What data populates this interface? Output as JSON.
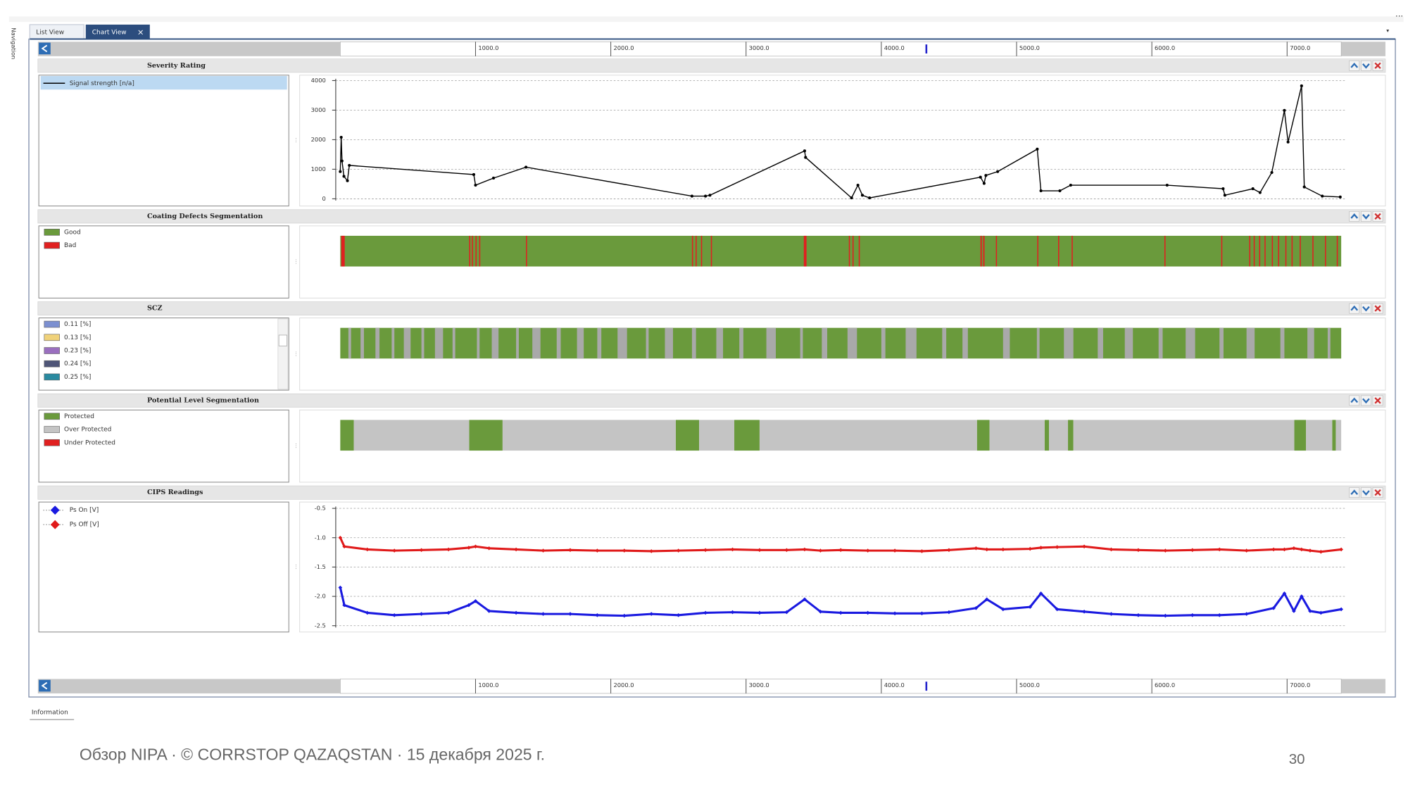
{
  "tabs": [
    "List View",
    "Chart View"
  ],
  "sidebar": "Navigation",
  "ruler": {
    "xlim": [
      0,
      7400
    ],
    "xticks": [
      {
        "value": 1000,
        "label": "1000.0"
      },
      {
        "value": 2000,
        "label": "2000.0"
      },
      {
        "value": 3000,
        "label": "3000.0"
      },
      {
        "value": 4000,
        "label": "4000.0"
      },
      {
        "value": 5000,
        "label": "5000.0"
      },
      {
        "value": 6000,
        "label": "6000.0"
      },
      {
        "value": 7000,
        "label": "7000.0"
      }
    ],
    "cursor": 4333
  },
  "chart_data": [
    {
      "type": "line",
      "title": "Severity Rating",
      "xlim": [
        0,
        7400
      ],
      "ylim": [
        0,
        4000
      ],
      "yticks": [
        0,
        1000,
        2000,
        3000,
        4000
      ],
      "grid": true,
      "series": [
        {
          "name": "Signal strength [n/a]",
          "color": "#000000",
          "x": [
            0,
            7,
            13,
            27,
            53,
            67,
            987,
            1000,
            1133,
            1373,
            2600,
            2700,
            2733,
            3433,
            3440,
            3780,
            3827,
            3860,
            3913,
            4733,
            4760,
            4773,
            4860,
            5153,
            5180,
            5320,
            5400,
            6113,
            6527,
            6540,
            6747,
            6800,
            6887,
            6980,
            7007,
            7107,
            7127,
            7260,
            7393
          ],
          "values": [
            920,
            2080,
            1280,
            760,
            610,
            1130,
            820,
            460,
            700,
            1070,
            90,
            90,
            120,
            1620,
            1400,
            30,
            460,
            120,
            30,
            730,
            520,
            790,
            920,
            1680,
            270,
            270,
            460,
            460,
            340,
            120,
            340,
            210,
            890,
            2990,
            1920,
            3820,
            400,
            90,
            60
          ]
        }
      ]
    },
    {
      "type": "segments",
      "title": "Coating Defects Segmentation",
      "xlim": [
        0,
        7400
      ],
      "series": [
        {
          "name": "Good",
          "color": "#6a9a3c",
          "intervals": [
            [
              0,
              7400
            ]
          ]
        },
        {
          "name": "Bad",
          "color": "#e02020",
          "intervals": [
            [
              7,
              33
            ],
            [
              953,
              961
            ],
            [
              973,
              981
            ],
            [
              1000,
              1008
            ],
            [
              1027,
              1035
            ],
            [
              1373,
              1381
            ],
            [
              2600,
              2608
            ],
            [
              2627,
              2635
            ],
            [
              2667,
              2675
            ],
            [
              2740,
              2748
            ],
            [
              3427,
              3447
            ],
            [
              3760,
              3768
            ],
            [
              3787,
              3795
            ],
            [
              3833,
              3841
            ],
            [
              4733,
              4743
            ],
            [
              4753,
              4763
            ],
            [
              4847,
              4855
            ],
            [
              5153,
              5161
            ],
            [
              5307,
              5315
            ],
            [
              5407,
              5415
            ],
            [
              6093,
              6101
            ],
            [
              6513,
              6521
            ],
            [
              6720,
              6728
            ],
            [
              6753,
              6761
            ],
            [
              6793,
              6801
            ],
            [
              6833,
              6841
            ],
            [
              6887,
              6895
            ],
            [
              6933,
              6941
            ],
            [
              6987,
              6995
            ],
            [
              7033,
              7041
            ],
            [
              7093,
              7101
            ],
            [
              7187,
              7195
            ],
            [
              7280,
              7288
            ],
            [
              7367,
              7375
            ]
          ]
        }
      ]
    },
    {
      "type": "stripes",
      "title": "SCZ",
      "xlim": [
        0,
        7400
      ],
      "series": [
        {
          "name": "0.11 [%]",
          "color": "#7b8fd0"
        },
        {
          "name": "0.13 [%]",
          "color": "#f0d27a"
        },
        {
          "name": "0.23 [%]",
          "color": "#9a6fbf"
        },
        {
          "name": "0.24 [%]",
          "color": "#4f5577"
        },
        {
          "name": "0.25 [%]",
          "color": "#2a8aa0"
        }
      ],
      "bar": {
        "color": "#6a9a3c",
        "stripe_color": "#a9a9a9",
        "stripes": [
          [
            60,
            80
          ],
          [
            150,
            175
          ],
          [
            260,
            290
          ],
          [
            380,
            400
          ],
          [
            470,
            520
          ],
          [
            600,
            620
          ],
          [
            700,
            760
          ],
          [
            830,
            850
          ],
          [
            1010,
            1030
          ],
          [
            1120,
            1170
          ],
          [
            1300,
            1320
          ],
          [
            1420,
            1480
          ],
          [
            1600,
            1630
          ],
          [
            1750,
            1800
          ],
          [
            1900,
            1930
          ],
          [
            2050,
            2120
          ],
          [
            2260,
            2280
          ],
          [
            2400,
            2460
          ],
          [
            2600,
            2630
          ],
          [
            2780,
            2830
          ],
          [
            2950,
            2980
          ],
          [
            3150,
            3220
          ],
          [
            3400,
            3420
          ],
          [
            3560,
            3600
          ],
          [
            3750,
            3820
          ],
          [
            4000,
            4030
          ],
          [
            4180,
            4260
          ],
          [
            4450,
            4480
          ],
          [
            4600,
            4640
          ],
          [
            4900,
            4950
          ],
          [
            5150,
            5170
          ],
          [
            5350,
            5420
          ],
          [
            5600,
            5640
          ],
          [
            5800,
            5860
          ],
          [
            6050,
            6080
          ],
          [
            6250,
            6320
          ],
          [
            6500,
            6530
          ],
          [
            6700,
            6760
          ],
          [
            6950,
            6980
          ],
          [
            7150,
            7200
          ],
          [
            7300,
            7320
          ]
        ]
      }
    },
    {
      "type": "segments",
      "title": "Potential Level Segmentation",
      "xlim": [
        0,
        7400
      ],
      "series": [
        {
          "name": "Protected",
          "color": "#6a9a3c",
          "intervals": [
            [
              0,
              100
            ],
            [
              953,
              1200
            ],
            [
              2480,
              2653
            ],
            [
              2913,
              3100
            ],
            [
              4707,
              4800
            ],
            [
              5207,
              5240
            ],
            [
              5380,
              5420
            ],
            [
              7053,
              7140
            ],
            [
              7333,
              7360
            ]
          ]
        },
        {
          "name": "Over Protected",
          "color": "#c4c4c4",
          "intervals": [
            [
              100,
              953
            ],
            [
              1200,
              2480
            ],
            [
              2653,
              2913
            ],
            [
              3100,
              4707
            ],
            [
              4800,
              5207
            ],
            [
              5240,
              5380
            ],
            [
              5420,
              7053
            ],
            [
              7140,
              7333
            ],
            [
              7360,
              7400
            ]
          ]
        },
        {
          "name": "Under Protected",
          "color": "#e02020",
          "intervals": []
        }
      ]
    },
    {
      "type": "scatter",
      "title": "CIPS Readings",
      "xlim": [
        0,
        7400
      ],
      "ylim": [
        -2.5,
        -0.5
      ],
      "yticks": [
        -0.5,
        {
          "value": -1,
          "label": "-1.0"
        },
        -1.5,
        {
          "value": -2,
          "label": "-2.0"
        },
        -2.5
      ],
      "grid": true,
      "series": [
        {
          "name": "Ps On [V]",
          "color": "#1a1ae0",
          "x": [
            0,
            30,
            200,
            400,
            600,
            800,
            950,
            1000,
            1100,
            1300,
            1500,
            1700,
            1900,
            2100,
            2300,
            2500,
            2700,
            2900,
            3100,
            3300,
            3433,
            3550,
            3700,
            3900,
            4100,
            4300,
            4500,
            4700,
            4780,
            4900,
            5100,
            5180,
            5300,
            5500,
            5700,
            5900,
            6100,
            6300,
            6500,
            6700,
            6900,
            6980,
            7050,
            7107,
            7170,
            7250,
            7400
          ],
          "values": [
            -1.85,
            -2.15,
            -2.28,
            -2.32,
            -2.3,
            -2.28,
            -2.15,
            -2.08,
            -2.25,
            -2.28,
            -2.3,
            -2.3,
            -2.32,
            -2.33,
            -2.3,
            -2.32,
            -2.28,
            -2.27,
            -2.28,
            -2.27,
            -2.05,
            -2.26,
            -2.28,
            -2.28,
            -2.29,
            -2.29,
            -2.27,
            -2.2,
            -2.05,
            -2.22,
            -2.18,
            -1.95,
            -2.22,
            -2.26,
            -2.3,
            -2.32,
            -2.33,
            -2.32,
            -2.32,
            -2.3,
            -2.2,
            -1.95,
            -2.25,
            -2.0,
            -2.25,
            -2.28,
            -2.22
          ]
        },
        {
          "name": "Ps Off [V]",
          "color": "#e01a1a",
          "x": [
            0,
            30,
            200,
            400,
            600,
            800,
            950,
            1000,
            1100,
            1300,
            1500,
            1700,
            1900,
            2100,
            2300,
            2500,
            2700,
            2900,
            3100,
            3300,
            3433,
            3550,
            3700,
            3900,
            4100,
            4300,
            4500,
            4700,
            4780,
            4900,
            5100,
            5180,
            5300,
            5500,
            5700,
            5900,
            6100,
            6300,
            6500,
            6700,
            6900,
            6980,
            7050,
            7107,
            7170,
            7250,
            7400
          ],
          "values": [
            -1.0,
            -1.15,
            -1.2,
            -1.22,
            -1.21,
            -1.2,
            -1.17,
            -1.15,
            -1.18,
            -1.2,
            -1.22,
            -1.21,
            -1.22,
            -1.22,
            -1.23,
            -1.22,
            -1.21,
            -1.2,
            -1.21,
            -1.21,
            -1.2,
            -1.22,
            -1.21,
            -1.22,
            -1.22,
            -1.23,
            -1.21,
            -1.18,
            -1.2,
            -1.2,
            -1.19,
            -1.17,
            -1.16,
            -1.15,
            -1.2,
            -1.21,
            -1.22,
            -1.21,
            -1.2,
            -1.22,
            -1.2,
            -1.2,
            -1.18,
            -1.2,
            -1.22,
            -1.24,
            -1.2
          ]
        }
      ]
    }
  ],
  "status": "Information",
  "footer": "Обзор NIPA · © CORRSTOP QAZAQSTAN · 15 декабря 2025 г.",
  "page_number": 30
}
